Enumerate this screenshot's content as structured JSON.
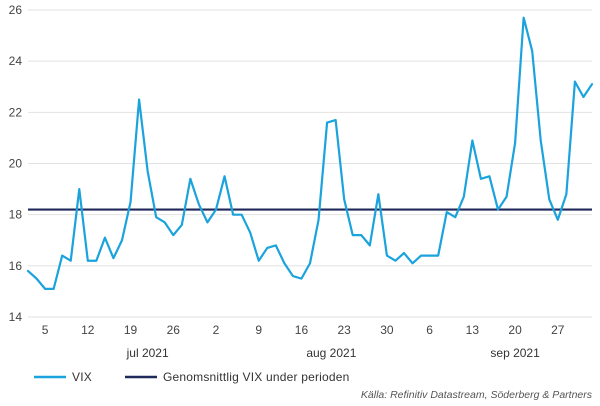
{
  "chart_data": {
    "type": "line",
    "ylim": [
      14,
      26
    ],
    "yticks": [
      14,
      16,
      18,
      20,
      22,
      24,
      26
    ],
    "grid": true,
    "x_tick_labels": [
      "5",
      "12",
      "19",
      "26",
      "2",
      "9",
      "16",
      "23",
      "30",
      "6",
      "13",
      "20",
      "27"
    ],
    "month_labels": [
      "jul 2021",
      "aug 2021",
      "sep 2021"
    ],
    "legend_position": "bottom-left",
    "series": [
      {
        "name": "VIX",
        "color": "#1AA3DC",
        "values": [
          15.8,
          15.5,
          15.1,
          15.1,
          16.4,
          16.2,
          19.0,
          16.2,
          16.2,
          17.1,
          16.3,
          17.0,
          18.5,
          22.5,
          19.7,
          17.9,
          17.7,
          17.2,
          17.6,
          19.4,
          18.4,
          17.7,
          18.2,
          19.5,
          18.0,
          18.0,
          17.3,
          16.2,
          16.7,
          16.8,
          16.1,
          15.6,
          15.5,
          16.1,
          17.8,
          21.6,
          21.7,
          18.6,
          17.2,
          17.2,
          16.8,
          18.8,
          16.4,
          16.2,
          16.5,
          16.1,
          16.4,
          16.4,
          16.4,
          18.1,
          17.9,
          18.7,
          20.9,
          19.4,
          19.5,
          18.2,
          18.7,
          20.8,
          25.7,
          24.4,
          20.9,
          18.6,
          17.8,
          18.8,
          23.2,
          22.6,
          23.1
        ]
      },
      {
        "name": "Genomsnittlig VIX under perioden",
        "color": "#1F2A5A",
        "values": [
          18.2
        ]
      }
    ]
  },
  "source": "Källa: Refinitiv Datastream, Söderberg & Partners"
}
